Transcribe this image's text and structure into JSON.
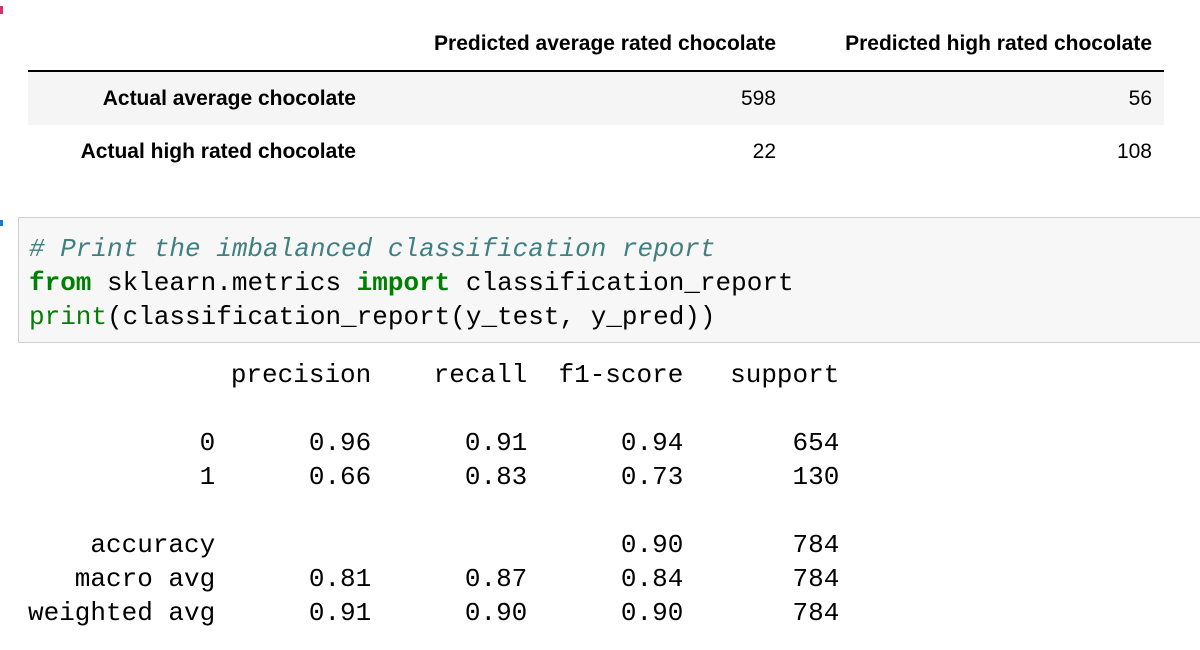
{
  "dataframe": {
    "columns": [
      "Predicted average rated chocolate",
      "Predicted high rated chocolate"
    ],
    "rows": [
      {
        "label": "Actual average chocolate",
        "values": [
          "598",
          "56"
        ]
      },
      {
        "label": "Actual high rated chocolate",
        "values": [
          "22",
          "108"
        ]
      }
    ]
  },
  "code_cell": {
    "comment": "# Print the imbalanced classification report",
    "line2_kw1": "from",
    "line2_mod": " sklearn.metrics ",
    "line2_kw2": "import",
    "line2_name": " classification_report",
    "line3_builtin": "print",
    "line3_rest": "(classification_report(y_test, y_pred))"
  },
  "report": {
    "header": [
      "precision",
      "recall",
      "f1-score",
      "support"
    ],
    "rows": [
      {
        "label": "0",
        "values": [
          "0.96",
          "0.91",
          "0.94",
          "654"
        ]
      },
      {
        "label": "1",
        "values": [
          "0.66",
          "0.83",
          "0.73",
          "130"
        ]
      }
    ],
    "summary": [
      {
        "label": "accuracy",
        "values": [
          "",
          "",
          "0.90",
          "784"
        ]
      },
      {
        "label": "macro avg",
        "values": [
          "0.81",
          "0.87",
          "0.84",
          "784"
        ]
      },
      {
        "label": "weighted avg",
        "values": [
          "0.91",
          "0.90",
          "0.90",
          "784"
        ]
      }
    ]
  }
}
